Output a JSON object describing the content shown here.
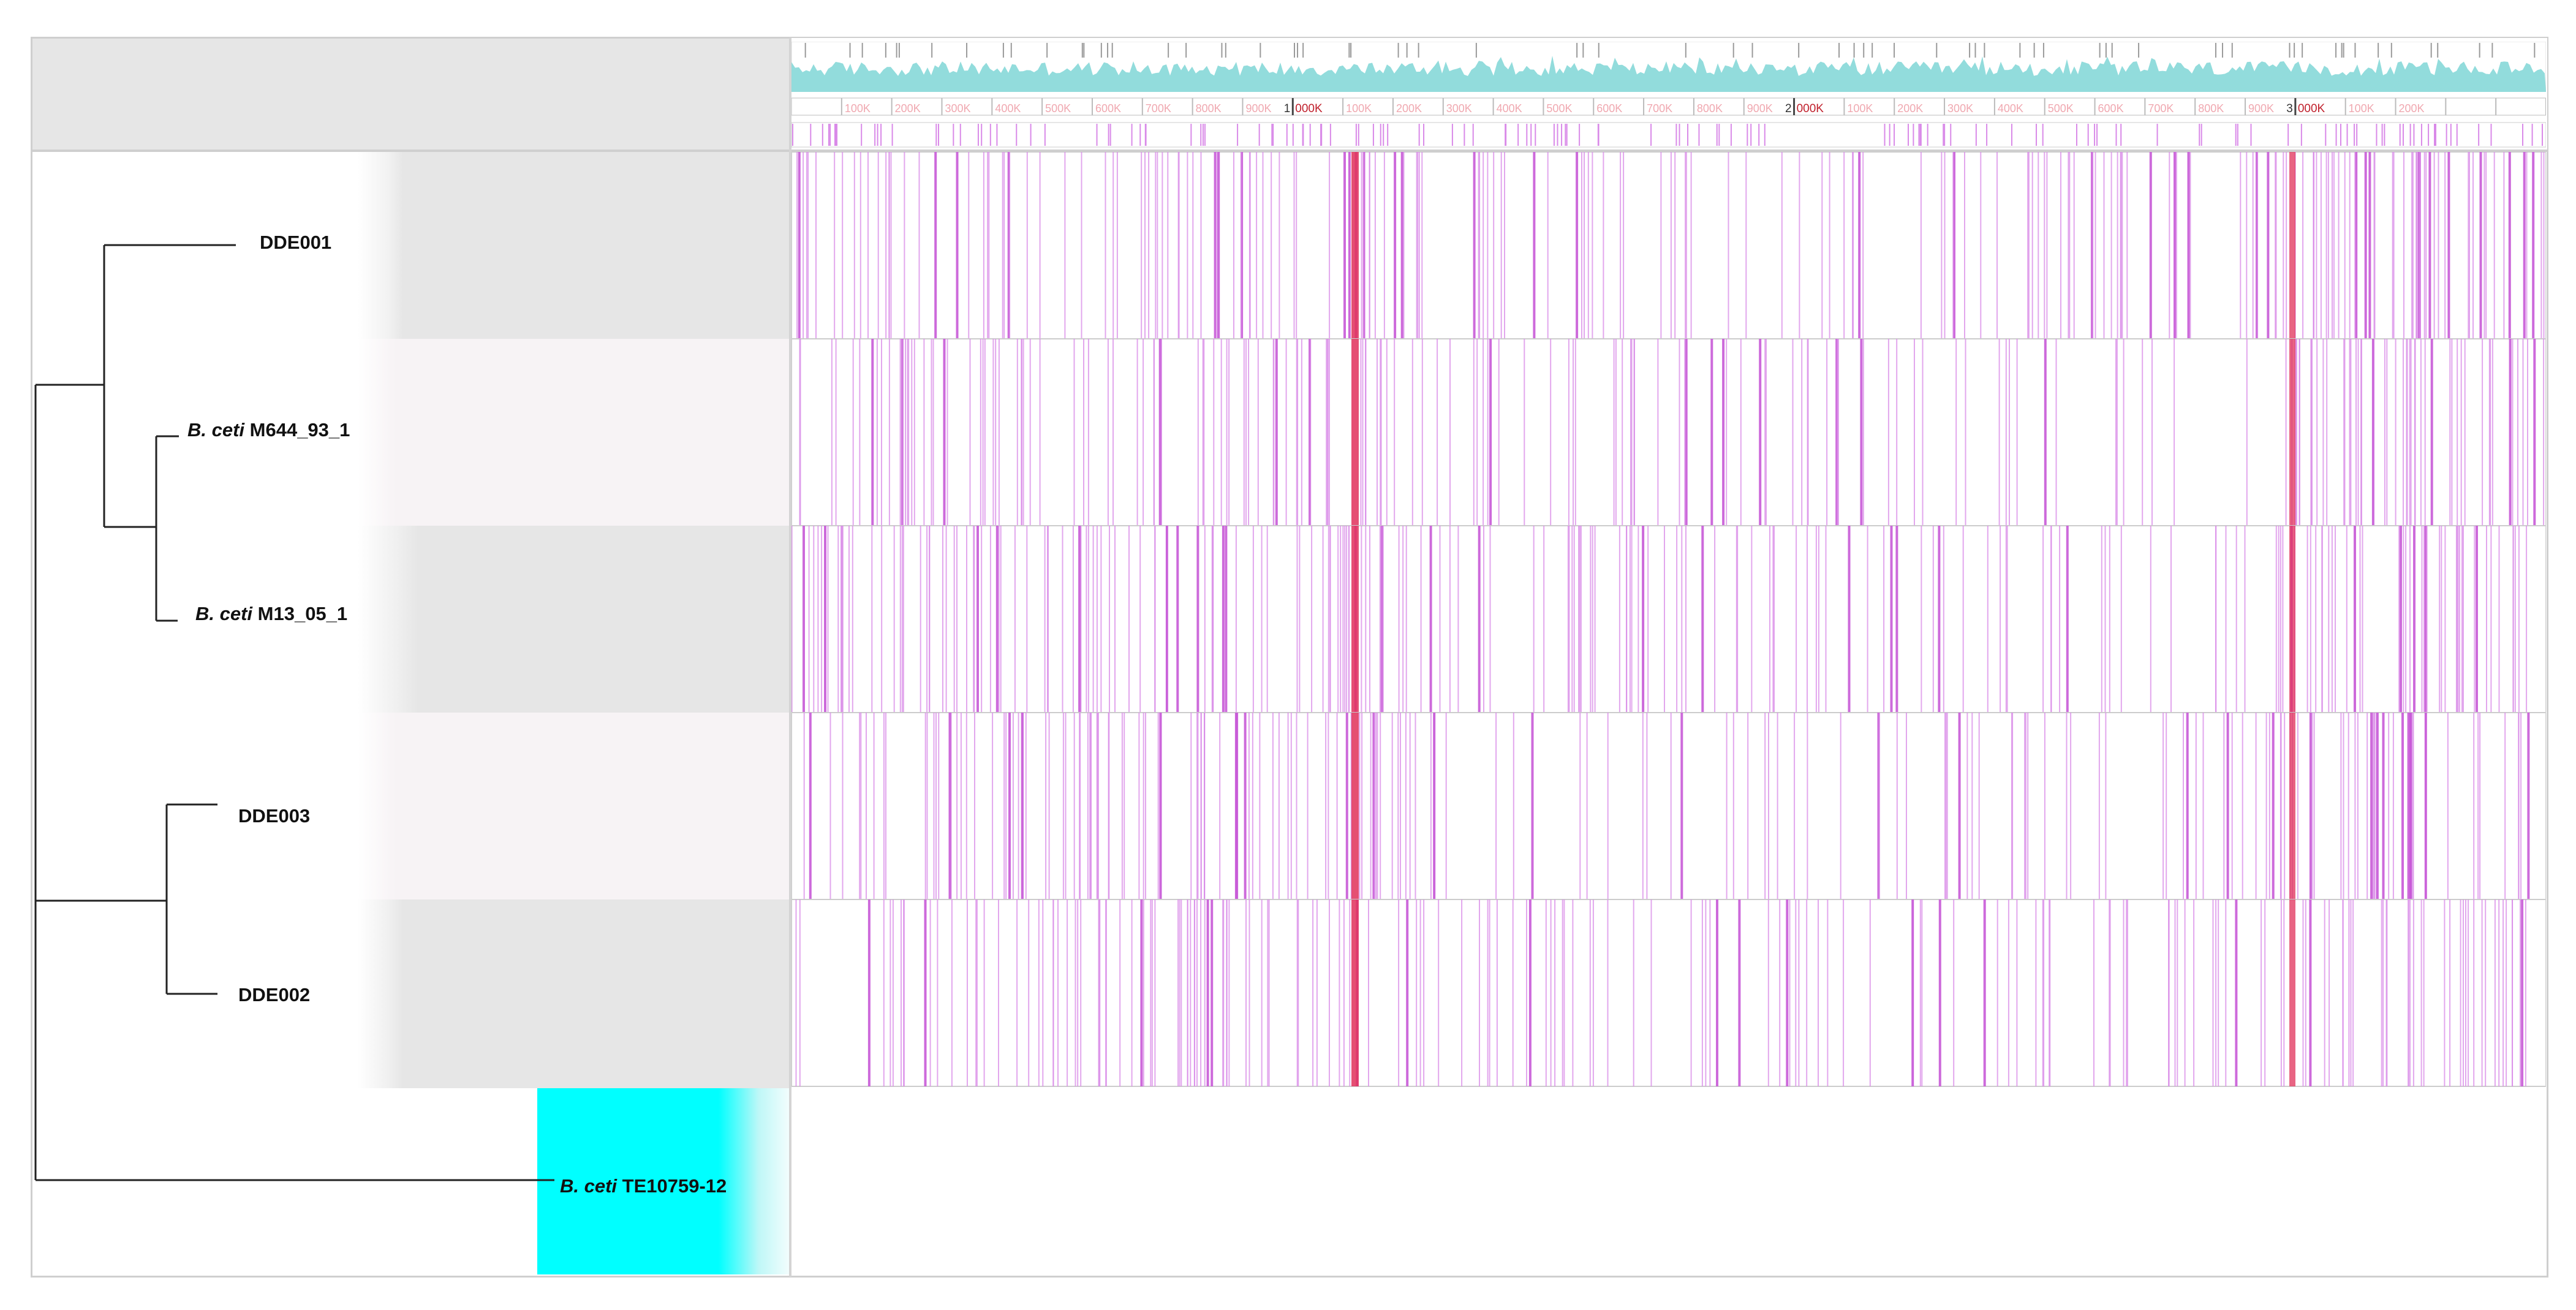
{
  "taxa": [
    {
      "id": "DDE001",
      "prefix": "",
      "name": "DDE001"
    },
    {
      "id": "M644",
      "prefix": "B. ceti",
      "name": " M644_93_1"
    },
    {
      "id": "M13",
      "prefix": "B. ceti",
      "name": " M13_05_1"
    },
    {
      "id": "DDE003",
      "prefix": "",
      "name": "DDE003"
    },
    {
      "id": "DDE002",
      "prefix": "",
      "name": "DDE002"
    },
    {
      "id": "TE10759",
      "prefix": "B. ceti",
      "name": " TE10759-12"
    }
  ],
  "ruler": {
    "minor_labels": [
      "100K",
      "200K",
      "300K",
      "400K",
      "500K",
      "600K",
      "700K",
      "800K",
      "900K",
      "1",
      "000K",
      "100K",
      "200K",
      "300K",
      "400K",
      "500K",
      "600K",
      "700K",
      "800K",
      "900K",
      "2",
      "000K",
      "100K",
      "200K",
      "300K",
      "400K",
      "500K",
      "600K",
      "700K",
      "800K",
      "900K",
      "3",
      "000K",
      "100K",
      "200K"
    ],
    "major_marks": [
      {
        "mb": "1",
        "k": "000K"
      },
      {
        "mb": "2",
        "k": "000K"
      },
      {
        "mb": "3",
        "k": "000K"
      }
    ]
  },
  "colors": {
    "snp_line": "#d98ae8",
    "snp_dense": "#c85ad8",
    "hotspot": "#e0305a",
    "coverage": "#7fd6d6",
    "highlight": "#00ffff"
  }
}
